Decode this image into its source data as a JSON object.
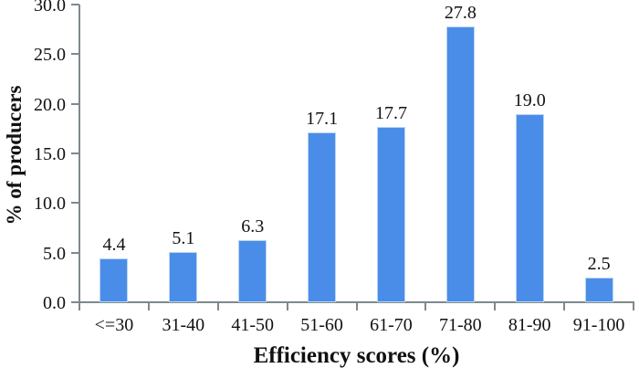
{
  "chart_data": {
    "type": "bar",
    "title": "",
    "categories": [
      "<=30",
      "31-40",
      "41-50",
      "51-60",
      "61-70",
      "71-80",
      "81-90",
      "91-100"
    ],
    "values": [
      4.4,
      5.1,
      6.3,
      17.1,
      17.7,
      27.8,
      19.0,
      2.5
    ],
    "value_labels": [
      "4.4",
      "5.1",
      "6.3",
      "17.1",
      "17.7",
      "27.8",
      "19.0",
      "2.5"
    ],
    "xlabel": "Efficiency scores (%)",
    "ylabel": "% of producers",
    "ylim": [
      0,
      30
    ],
    "ytick_step": 5,
    "ytick_labels": [
      "0.0",
      "5.0",
      "10.0",
      "15.0",
      "20.0",
      "25.0",
      "30.0"
    ],
    "grid": false,
    "legend_position": "none",
    "colors": {
      "bar_fill": "#4a8de8",
      "bar_border": "#b9d5f2",
      "axis": "#7e898d",
      "text": "#111111",
      "background": "#ffffff"
    }
  }
}
